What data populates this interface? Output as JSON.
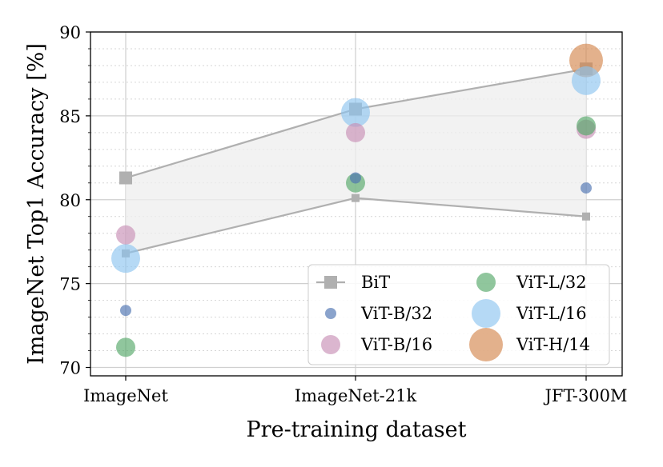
{
  "chart_data": {
    "type": "scatter",
    "xlabel": "Pre-training dataset",
    "ylabel": "ImageNet Top1 Accuracy [%]",
    "categories": [
      "ImageNet",
      "ImageNet-21k",
      "JFT-300M"
    ],
    "ylim": [
      69.5,
      90
    ],
    "yticks": [
      "70",
      "75",
      "80",
      "85",
      "90"
    ],
    "grid": true,
    "legend_position": "bottom-right",
    "bit_band": {
      "name": "BiT",
      "upper": [
        81.3,
        85.4,
        87.8
      ],
      "lower": [
        76.8,
        80.1,
        79.0
      ],
      "color": "#b0b0b0"
    },
    "series": [
      {
        "name": "ViT-B/32",
        "values": [
          73.4,
          81.3,
          80.7
        ],
        "color": "#4c72b0",
        "size": "small"
      },
      {
        "name": "ViT-B/16",
        "values": [
          77.9,
          84.0,
          84.2
        ],
        "color": "#c88fb6",
        "size": "medium"
      },
      {
        "name": "ViT-L/32",
        "values": [
          71.2,
          81.0,
          84.4
        ],
        "color": "#55a868",
        "size": "medium"
      },
      {
        "name": "ViT-L/16",
        "values": [
          76.5,
          85.2,
          87.1
        ],
        "color": "#8ec4f0",
        "size": "large"
      },
      {
        "name": "ViT-H/14",
        "values": [
          null,
          null,
          88.3
        ],
        "color": "#d4874e",
        "size": "xlarge"
      }
    ]
  }
}
